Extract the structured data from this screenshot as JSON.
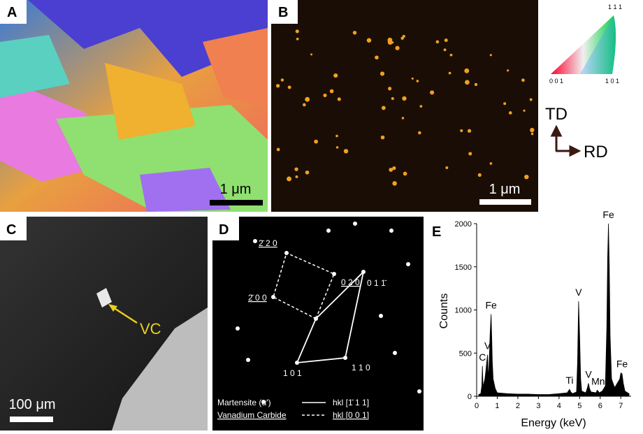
{
  "panels": {
    "a": {
      "label": "A",
      "scale_bar": "1 μm"
    },
    "b": {
      "label": "B",
      "scale_bar": "1 μm"
    },
    "c": {
      "label": "C",
      "scale_bar": "100 μm",
      "arrow_label": "VC"
    },
    "d": {
      "label": "D",
      "spots": [
        "2̄ 2 0",
        "0 2 0",
        "2̄ 0 0",
        "0 1 1̄",
        "1 1 0",
        "1 0 1"
      ],
      "legend": [
        {
          "name": "Martensite (α')",
          "zone": "hkl [1̄ 1 1]"
        },
        {
          "name": "Vanadium Carbide",
          "zone": "hkl [0 0 1]"
        }
      ]
    },
    "e": {
      "label": "E"
    }
  },
  "ipf_key": {
    "top": "1 1 1",
    "left": "0 0 1",
    "right": "1 0 1"
  },
  "direction_key": {
    "up": "TD",
    "right": "RD"
  },
  "chart_data": {
    "type": "area",
    "x_label": "Energy (keV)",
    "y_label": "Counts",
    "color": "#000000",
    "xlim": [
      0,
      7.5
    ],
    "xticks": [
      0,
      1,
      2,
      3,
      4,
      5,
      6,
      7
    ],
    "ylim": [
      0,
      2000
    ],
    "yticks": [
      0,
      500,
      1000,
      1500,
      2000
    ],
    "x": [
      0.1,
      0.2,
      0.25,
      0.28,
      0.31,
      0.35,
      0.4,
      0.45,
      0.5,
      0.53,
      0.56,
      0.6,
      0.65,
      0.7,
      0.73,
      0.76,
      0.8,
      0.9,
      1.0,
      1.5,
      2.0,
      2.5,
      3.0,
      3.5,
      4.0,
      4.4,
      4.45,
      4.51,
      4.57,
      4.65,
      4.85,
      4.9,
      4.95,
      5.0,
      5.05,
      5.1,
      5.3,
      5.38,
      5.43,
      5.48,
      5.55,
      5.8,
      5.85,
      5.9,
      5.95,
      6.1,
      6.25,
      6.32,
      6.36,
      6.4,
      6.44,
      6.48,
      6.55,
      6.7,
      6.95,
      7.0,
      7.06,
      7.12,
      7.2,
      7.4
    ],
    "values": [
      20,
      30,
      120,
      350,
      100,
      150,
      200,
      300,
      420,
      480,
      200,
      350,
      700,
      950,
      700,
      400,
      200,
      90,
      40,
      30,
      25,
      25,
      20,
      20,
      30,
      40,
      60,
      80,
      50,
      30,
      50,
      400,
      1100,
      700,
      200,
      60,
      40,
      100,
      150,
      90,
      50,
      40,
      70,
      60,
      40,
      60,
      120,
      800,
      1600,
      2000,
      1500,
      700,
      200,
      100,
      200,
      270,
      260,
      150,
      60,
      30
    ],
    "peak_labels": [
      {
        "text": "C",
        "x": 0.28
      },
      {
        "text": "V",
        "x": 0.53
      },
      {
        "text": "Fe",
        "x": 0.7
      },
      {
        "text": "Ti",
        "x": 4.51
      },
      {
        "text": "V",
        "x": 4.95
      },
      {
        "text": "V",
        "x": 5.43
      },
      {
        "text": "Mn",
        "x": 5.9
      },
      {
        "text": "Fe",
        "x": 6.4
      },
      {
        "text": "Fe",
        "x": 7.06
      }
    ]
  }
}
